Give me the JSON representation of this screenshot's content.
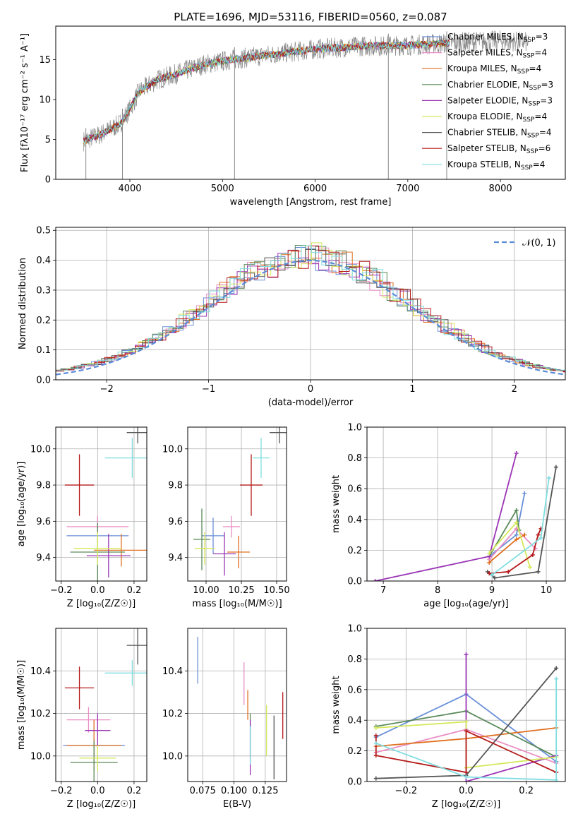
{
  "title": "PLATE=1696, MJD=53116, FIBERID=0560, z=0.087",
  "models": [
    {
      "name": "Chabrier MILES",
      "nssp": "3",
      "color": "#6a8fd8"
    },
    {
      "name": "Salpeter MILES",
      "nssp": "4",
      "color": "#e98ec4"
    },
    {
      "name": "Kroupa MILES",
      "nssp": "4",
      "color": "#e07020"
    },
    {
      "name": "Chabrier ELODIE",
      "nssp": "3",
      "color": "#5a8a5a"
    },
    {
      "name": "Salpeter ELODIE",
      "nssp": "3",
      "color": "#9a35b5"
    },
    {
      "name": "Kroupa ELODIE",
      "nssp": "4",
      "color": "#d5e85a"
    },
    {
      "name": "Chabrier STELIB",
      "nssp": "4",
      "color": "#555555"
    },
    {
      "name": "Salpeter STELIB",
      "nssp": "6",
      "color": "#b51a1a"
    },
    {
      "name": "Kroupa STELIB",
      "nssp": "4",
      "color": "#80dde0"
    }
  ],
  "chart_data": [
    {
      "type": "line",
      "panel": "spectrum",
      "title": "PLATE=1696, MJD=53116, FIBERID=0560, z=0.087",
      "xlabel": "wavelength [Angstrom, rest frame]",
      "ylabel": "Flux [fλ10⁻¹⁷ erg cm⁻² s⁻¹ A⁻¹]",
      "xlim": [
        3200,
        8700
      ],
      "ylim": [
        0,
        19.2
      ],
      "xticks": [
        4000,
        5000,
        6000,
        7000,
        8000
      ],
      "yticks": [
        0,
        5,
        10,
        15
      ],
      "legend": "top-right",
      "data_color": "#888888",
      "continuum": {
        "x": [
          3500,
          3700,
          3900,
          4000,
          4100,
          4300,
          4500,
          4800,
          5100,
          5500,
          6000,
          6500,
          7000,
          7500,
          8000,
          8300
        ],
        "y": [
          4.8,
          5.7,
          7.0,
          8.8,
          11.0,
          12.5,
          13.2,
          14.4,
          15.0,
          15.6,
          16.3,
          16.7,
          16.8,
          17.1,
          17.4,
          17.2
        ]
      },
      "dips": [
        {
          "x": 3525,
          "y": 0.0
        },
        {
          "x": 3920,
          "y": 0.0
        },
        {
          "x": 5130,
          "y": 0.0
        },
        {
          "x": 6790,
          "y": 0.0
        },
        {
          "x": 7420,
          "y": 0.0
        }
      ]
    },
    {
      "type": "line",
      "panel": "residuals",
      "xlabel": "(data-model)/error",
      "ylabel": "Normed distribution",
      "xlim": [
        -2.5,
        2.5
      ],
      "ylim": [
        0,
        0.51
      ],
      "xticks": [
        -2,
        -1,
        0,
        1,
        2
      ],
      "yticks": [
        0.0,
        0.1,
        0.2,
        0.3,
        0.4,
        0.5
      ],
      "reference_label": "𝒩(0, 1)",
      "reference_color": "#5b8bd8",
      "legend": "top-right"
    },
    {
      "type": "scatter",
      "panel": "age-vs-Z",
      "xlabel": "Z [log₁₀(Z/Z☉)]",
      "ylabel": "age  [log₁₀(age/yr)]",
      "xlim": [
        -0.23,
        0.27
      ],
      "ylim": [
        9.27,
        10.12
      ],
      "xticks": [
        -0.2,
        0.0,
        0.2
      ],
      "yticks": [
        9.4,
        9.6,
        9.8,
        10.0
      ],
      "points": [
        {
          "x": 0.0,
          "y": 9.52,
          "xerr": 0.17,
          "yerr": 0.1
        },
        {
          "x": 0.0,
          "y": 9.57,
          "xerr": 0.17,
          "yerr": 0.06
        },
        {
          "x": 0.13,
          "y": 9.44,
          "xerr": 0.15,
          "yerr": 0.09
        },
        {
          "x": 0.0,
          "y": 9.43,
          "xerr": 0.15,
          "yerr": 0.16
        },
        {
          "x": 0.06,
          "y": 9.41,
          "xerr": 0.12,
          "yerr": 0.12
        },
        {
          "x": 0.0,
          "y": 9.45,
          "xerr": 0.13,
          "yerr": 0.09
        },
        {
          "x": 0.22,
          "y": 10.09,
          "xerr": 0.06,
          "yerr": 0.06
        },
        {
          "x": -0.1,
          "y": 9.8,
          "xerr": 0.08,
          "yerr": 0.17
        },
        {
          "x": 0.19,
          "y": 9.95,
          "xerr": 0.15,
          "yerr": 0.11
        }
      ]
    },
    {
      "type": "scatter",
      "panel": "age-vs-mass",
      "xlabel": "mass [log₁₀(M/M☉)]",
      "xlim": [
        9.87,
        10.57
      ],
      "ylim": [
        9.27,
        10.12
      ],
      "xticks": [
        10.0,
        10.25,
        10.5
      ],
      "yticks": [
        9.4,
        9.6,
        9.8,
        10.0
      ],
      "points": [
        {
          "x": 10.05,
          "y": 9.52,
          "xerr": 0.08,
          "yerr": 0.1
        },
        {
          "x": 10.18,
          "y": 9.57,
          "xerr": 0.06,
          "yerr": 0.06
        },
        {
          "x": 10.23,
          "y": 9.43,
          "xerr": 0.08,
          "yerr": 0.09
        },
        {
          "x": 9.97,
          "y": 9.5,
          "xerr": 0.06,
          "yerr": 0.17
        },
        {
          "x": 10.13,
          "y": 9.42,
          "xerr": 0.08,
          "yerr": 0.12
        },
        {
          "x": 9.99,
          "y": 9.45,
          "xerr": 0.07,
          "yerr": 0.09
        },
        {
          "x": 10.52,
          "y": 10.09,
          "xerr": 0.07,
          "yerr": 0.06
        },
        {
          "x": 10.32,
          "y": 9.8,
          "xerr": 0.08,
          "yerr": 0.17
        },
        {
          "x": 10.39,
          "y": 9.95,
          "xerr": 0.06,
          "yerr": 0.11
        }
      ]
    },
    {
      "type": "line",
      "panel": "weight-vs-age",
      "xlabel": "age  [log₁₀(age/yr)]",
      "ylabel": "mass weight",
      "xlim": [
        6.7,
        10.35
      ],
      "ylim": [
        0,
        1
      ],
      "xticks": [
        7,
        8,
        9,
        10
      ],
      "yticks": [
        0.0,
        0.2,
        0.4,
        0.6,
        0.8,
        1.0
      ],
      "series": [
        {
          "x": [
            8.95,
            9.45,
            9.6
          ],
          "y": [
            0.16,
            0.3,
            0.57
          ]
        },
        {
          "x": [
            8.95,
            9.45,
            9.8
          ],
          "y": [
            0.14,
            0.34,
            0.21
          ]
        },
        {
          "x": [
            8.95,
            9.45,
            9.6
          ],
          "y": [
            0.12,
            0.27,
            0.3
          ]
        },
        {
          "x": [
            8.95,
            9.45,
            9.5
          ],
          "y": [
            0.16,
            0.46,
            0.33
          ]
        },
        {
          "x": [
            6.85,
            8.95,
            9.45
          ],
          "y": [
            0.0,
            0.16,
            0.83
          ]
        },
        {
          "x": [
            8.95,
            9.45,
            9.7
          ],
          "y": [
            0.18,
            0.38,
            0.09
          ]
        },
        {
          "x": [
            8.92,
            9.05,
            9.85,
            10.18
          ],
          "y": [
            0.06,
            0.02,
            0.06,
            0.74
          ]
        },
        {
          "x": [
            8.95,
            9.3,
            9.75,
            9.85,
            9.9
          ],
          "y": [
            0.05,
            0.06,
            0.17,
            0.3,
            0.34
          ]
        },
        {
          "x": [
            9.0,
            9.9,
            10.05
          ],
          "y": [
            0.04,
            0.28,
            0.67
          ]
        }
      ]
    },
    {
      "type": "scatter",
      "panel": "mass-vs-Z",
      "xlabel": "Z [log₁₀(Z/Z☉)]",
      "ylabel": "mass [log₁₀(M/M☉)]",
      "xlim": [
        -0.23,
        0.27
      ],
      "ylim": [
        9.88,
        10.6
      ],
      "xticks": [
        -0.2,
        0.0,
        0.2
      ],
      "yticks": [
        10.0,
        10.2,
        10.4
      ],
      "points": [
        {
          "x": -0.02,
          "y": 10.05,
          "xerr": 0.17,
          "yerr": 0.03
        },
        {
          "x": -0.05,
          "y": 10.17,
          "xerr": 0.12,
          "yerr": 0.06
        },
        {
          "x": -0.02,
          "y": 10.05,
          "xerr": 0.15,
          "yerr": 0.12
        },
        {
          "x": -0.02,
          "y": 9.97,
          "xerr": 0.13,
          "yerr": 0.1
        },
        {
          "x": 0.0,
          "y": 10.12,
          "xerr": 0.07,
          "yerr": 0.08
        },
        {
          "x": 0.0,
          "y": 9.99,
          "xerr": 0.1,
          "yerr": 0.06
        },
        {
          "x": 0.22,
          "y": 10.52,
          "xerr": 0.06,
          "yerr": 0.09
        },
        {
          "x": -0.1,
          "y": 10.32,
          "xerr": 0.08,
          "yerr": 0.1
        },
        {
          "x": 0.19,
          "y": 10.39,
          "xerr": 0.15,
          "yerr": 0.06
        }
      ]
    },
    {
      "type": "scatter",
      "panel": "mass-vs-EBV",
      "xlabel": "E(B-V)",
      "xlim": [
        0.063,
        0.142
      ],
      "ylim": [
        9.88,
        10.6
      ],
      "xticks": [
        0.075,
        0.1,
        0.125
      ],
      "yticks": [
        10.0,
        10.2,
        10.4
      ],
      "points": [
        {
          "x": 0.071,
          "y": 10.45,
          "yerr": 0.11
        },
        {
          "x": 0.108,
          "y": 10.34,
          "yerr": 0.1
        },
        {
          "x": 0.111,
          "y": 10.24,
          "yerr": 0.07
        },
        {
          "x": 0.113,
          "y": 10.1,
          "yerr": 0.1
        },
        {
          "x": 0.113,
          "y": 10.04,
          "yerr": 0.13
        },
        {
          "x": 0.126,
          "y": 10.12,
          "yerr": 0.12
        },
        {
          "x": 0.132,
          "y": 10.04,
          "yerr": 0.15
        },
        {
          "x": 0.139,
          "y": 10.19,
          "yerr": 0.11
        },
        {
          "x": 0.113,
          "y": 10.05,
          "yerr": 0.09
        }
      ]
    },
    {
      "type": "line",
      "panel": "weight-vs-Z",
      "xlabel": "Z [log₁₀(Z/Z☉)]",
      "ylabel": "mass weight",
      "xlim": [
        -0.33,
        0.33
      ],
      "ylim": [
        0,
        1
      ],
      "xticks": [
        -0.2,
        0.0,
        0.2
      ],
      "yticks": [
        0.0,
        0.2,
        0.4,
        0.6,
        0.8,
        1.0
      ],
      "series": [
        {
          "x": [
            -0.3,
            0.0,
            0.3
          ],
          "y": [
            0.29,
            0.57,
            0.13
          ]
        },
        {
          "x": [
            -0.3,
            0.0,
            0.3
          ],
          "y": [
            0.19,
            0.34,
            0.12
          ]
        },
        {
          "x": [
            -0.3,
            0.0,
            0.3
          ],
          "y": [
            0.23,
            0.28,
            0.35
          ]
        },
        {
          "x": [
            -0.3,
            0.0,
            0.3
          ],
          "y": [
            0.36,
            0.46,
            0.16
          ]
        },
        {
          "x": [
            0.0,
            0.0,
            0.3
          ],
          "y": [
            0.83,
            0.0,
            0.17
          ]
        },
        {
          "x": [
            -0.3,
            0.0,
            0.0,
            0.3
          ],
          "y": [
            0.35,
            0.39,
            0.09,
            0.16
          ]
        },
        {
          "x": [
            -0.3,
            0.0,
            0.3
          ],
          "y": [
            0.02,
            0.04,
            0.74
          ]
        },
        {
          "x": [
            -0.3,
            -0.3,
            0.0,
            0.0,
            0.3
          ],
          "y": [
            0.3,
            0.17,
            0.06,
            0.33,
            0.06
          ]
        },
        {
          "x": [
            -0.3,
            0.0,
            0.3,
            0.3
          ],
          "y": [
            0.25,
            0.03,
            0.01,
            0.67
          ]
        }
      ]
    }
  ]
}
